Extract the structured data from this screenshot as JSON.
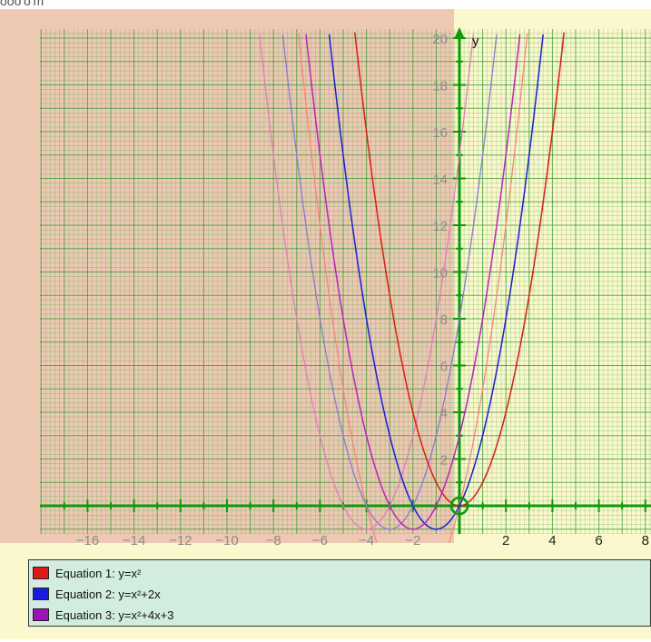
{
  "header_text": "ooo'o'm",
  "chart_data": {
    "type": "line",
    "title": "",
    "xlabel": "",
    "ylabel": "y",
    "xlim": [
      -18,
      8
    ],
    "ylim": [
      -1.2,
      20.6
    ],
    "grid": true,
    "highlight_point": [
      0,
      0
    ],
    "x_ticks": [
      {
        "value": -16,
        "label": "−16"
      },
      {
        "value": -14,
        "label": "−14"
      },
      {
        "value": -12,
        "label": "−12"
      },
      {
        "value": -10,
        "label": "−10"
      },
      {
        "value": -8,
        "label": "−8"
      },
      {
        "value": -6,
        "label": "−6"
      },
      {
        "value": -4,
        "label": "−4"
      },
      {
        "value": -2,
        "label": "−2"
      },
      {
        "value": 2,
        "label": "2"
      },
      {
        "value": 4,
        "label": "4"
      },
      {
        "value": 6,
        "label": "6"
      },
      {
        "value": 8,
        "label": "8"
      }
    ],
    "y_ticks": [
      {
        "value": 2,
        "label": "2"
      },
      {
        "value": 4,
        "label": "4"
      },
      {
        "value": 6,
        "label": "6"
      },
      {
        "value": 8,
        "label": "8"
      },
      {
        "value": 10,
        "label": "10"
      },
      {
        "value": 12,
        "label": "12"
      },
      {
        "value": 14,
        "label": "14"
      },
      {
        "value": 16,
        "label": "16"
      },
      {
        "value": 18,
        "label": "18"
      },
      {
        "value": 20,
        "label": "20"
      }
    ],
    "series": [
      {
        "name": "Equation 1: y=x²",
        "a": 1,
        "b": 0,
        "c": 0,
        "color": "#e21818"
      },
      {
        "name": "Equation 2: y=x²+2x",
        "a": 1,
        "b": 2,
        "c": 0,
        "color": "#1a1ae6"
      },
      {
        "name": "Equation 3: y=x²+4x+3",
        "a": 1,
        "b": 4,
        "c": 3,
        "color": "#c020c0"
      }
    ],
    "shadow_series": [
      {
        "a": 1,
        "b": 4,
        "c": 0,
        "color": "#ff8080"
      },
      {
        "a": 1,
        "b": 6,
        "c": 8,
        "color": "#8a78d8"
      },
      {
        "a": 1,
        "b": 8,
        "c": 15,
        "color": "#e878c0"
      }
    ],
    "legend_position": "bottom",
    "colors": {
      "panel_bg": "#faf8cc",
      "shaded_region": "#edc9b4",
      "grid_green": "#2e9a2e",
      "axis": "#0a9a0a",
      "tick_text": "#8a8a8a"
    }
  },
  "legend": {
    "items": [
      {
        "label": "Equation 1: y=x²",
        "swatch": "#e21818"
      },
      {
        "label": "Equation 2: y=x²+2x",
        "swatch": "#1a1ae6"
      },
      {
        "label": "Equation 3: y=x²+4x+3",
        "swatch": "#a012b8"
      }
    ]
  }
}
